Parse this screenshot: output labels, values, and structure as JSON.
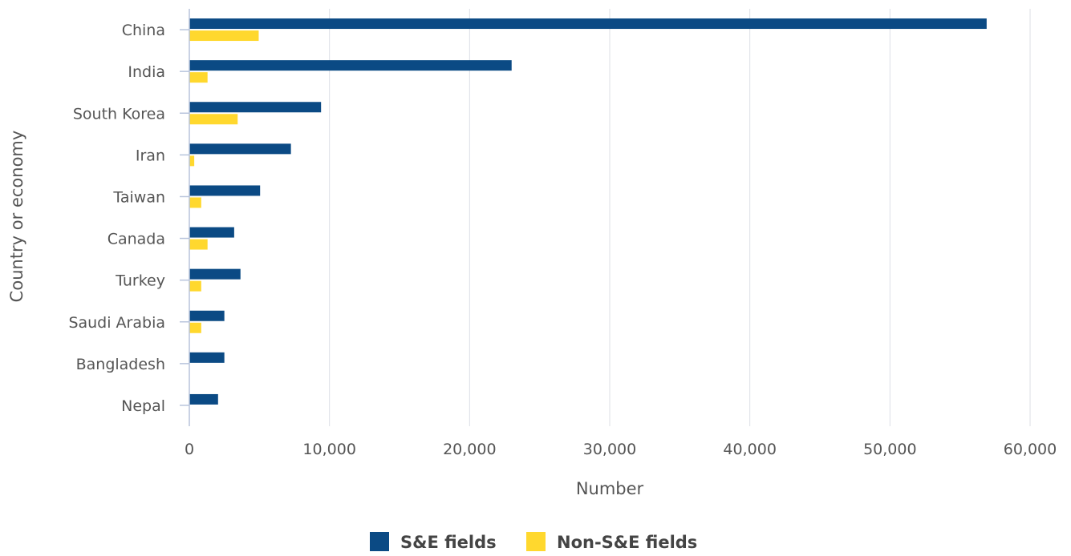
{
  "chart_data": {
    "type": "bar",
    "orientation": "horizontal",
    "categories": [
      "China",
      "India",
      "South Korea",
      "Iran",
      "Taiwan",
      "Canada",
      "Turkey",
      "Saudi Arabia",
      "Bangladesh",
      "Nepal"
    ],
    "series": [
      {
        "name": "S&E fields",
        "color": "#0b4a84",
        "values": [
          56900,
          23000,
          9400,
          7250,
          5050,
          3200,
          3650,
          2500,
          2500,
          2050
        ]
      },
      {
        "name": "Non-S&E fields",
        "color": "#ffd82e",
        "values": [
          4950,
          1300,
          3450,
          350,
          850,
          1300,
          850,
          850,
          0,
          0
        ]
      }
    ],
    "xlabel": "Number",
    "ylabel": "Country or economy",
    "xlim": [
      0,
      60000
    ],
    "xticks": [
      0,
      10000,
      20000,
      30000,
      40000,
      50000,
      60000
    ],
    "xtick_labels": [
      "0",
      "10,000",
      "20,000",
      "30,000",
      "40,000",
      "50,000",
      "60,000"
    ],
    "grid": "vertical",
    "legend_position": "bottom"
  }
}
